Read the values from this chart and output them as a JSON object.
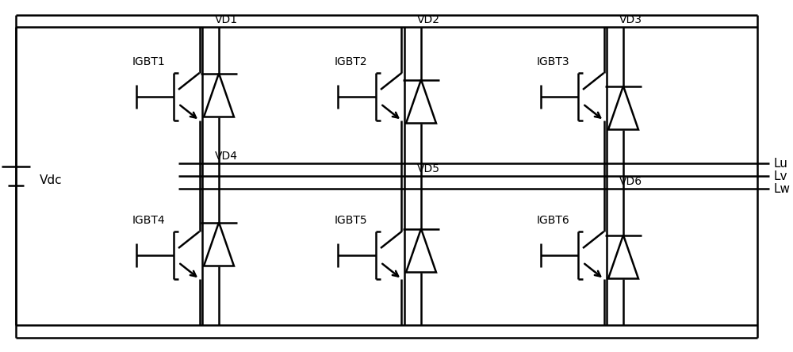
{
  "background": "#ffffff",
  "line_color": "#000000",
  "line_width": 1.8,
  "fig_width": 10.0,
  "fig_height": 4.44,
  "igbt_labels": [
    "IGBT1",
    "IGBT2",
    "IGBT3",
    "IGBT4",
    "IGBT5",
    "IGBT6"
  ],
  "diode_labels": [
    "VD1",
    "VD2",
    "VD3",
    "VD4",
    "VD5",
    "VD6"
  ],
  "output_labels": [
    "Lu",
    "Lv",
    "Lw"
  ],
  "vdc_label": "Vdc",
  "label_fontsize": 11,
  "component_fontsize": 10
}
